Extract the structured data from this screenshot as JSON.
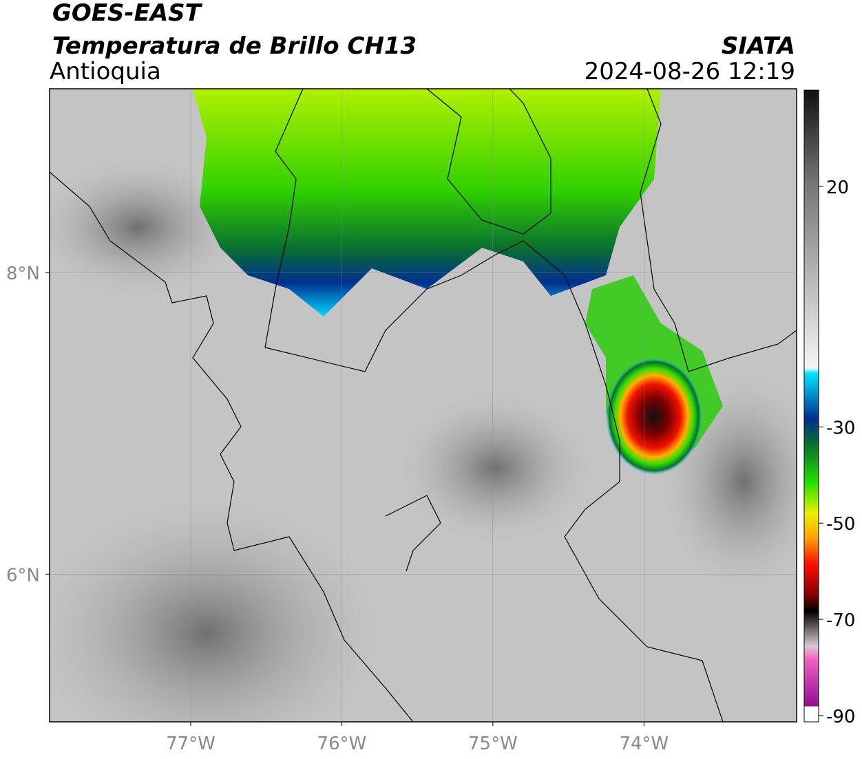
{
  "header": {
    "source": "GOES-EAST",
    "product": "Temperatura de Brillo CH13",
    "region": "Antioquia",
    "agency": "SIATA",
    "datetime": "2024-08-26 12:19"
  },
  "map": {
    "xlim": [
      -77.934,
      -72.99
    ],
    "ylim": [
      5.02,
      9.22
    ],
    "xticks": [
      {
        "value": -77,
        "label": "77°W"
      },
      {
        "value": -76,
        "label": "76°W"
      },
      {
        "value": -75,
        "label": "75°W"
      },
      {
        "value": -74,
        "label": "74°W"
      }
    ],
    "yticks": [
      {
        "value": 8,
        "label": "8°N"
      },
      {
        "value": 6,
        "label": "6°N"
      }
    ],
    "grid": true
  },
  "colorbar": {
    "clim": [
      -91.3,
      40
    ],
    "ticks": [
      20,
      -30,
      -50,
      -70,
      -90
    ]
  }
}
